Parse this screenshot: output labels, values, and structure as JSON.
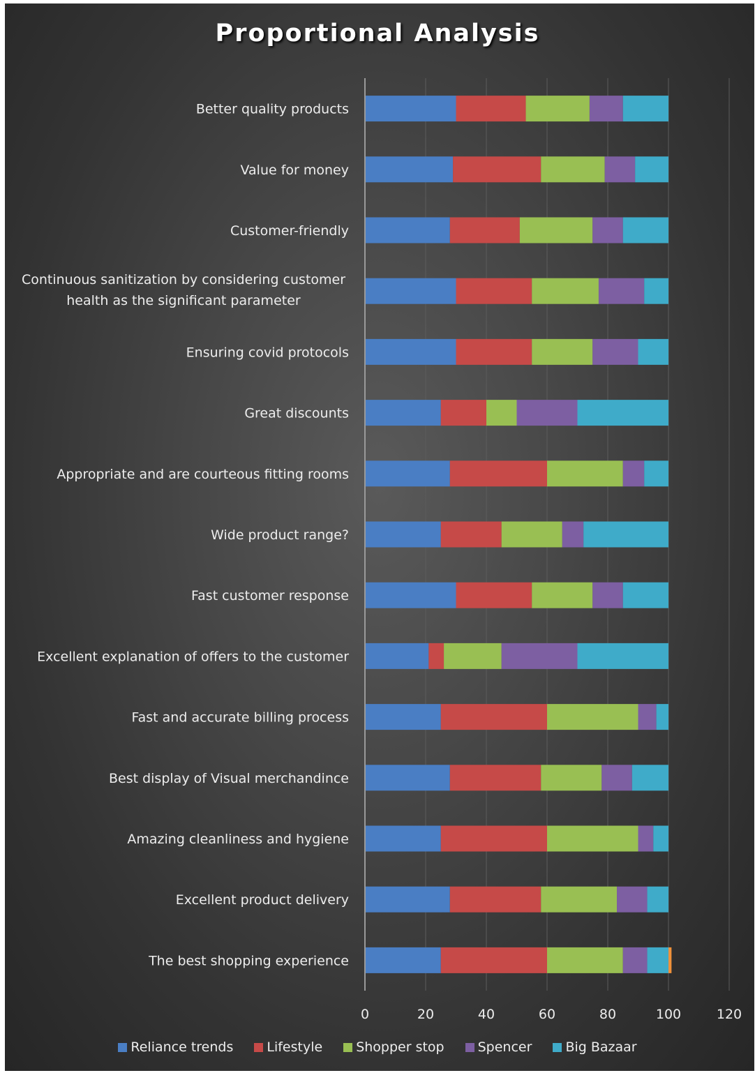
{
  "chart_data": {
    "type": "bar",
    "orientation": "horizontal",
    "stacked": true,
    "title": "Proportional Analysis",
    "xlabel": "",
    "ylabel": "",
    "xlim": [
      0,
      120
    ],
    "x_ticks": [
      0,
      20,
      40,
      60,
      80,
      100,
      120
    ],
    "grid": true,
    "legend_position": "bottom",
    "categories": [
      "Better quality products",
      "Value for money",
      "Customer-friendly",
      [
        "Continuous sanitization by considering customer",
        "health as the significant parameter"
      ],
      "Ensuring covid protocols",
      "Great discounts",
      "Appropriate and are courteous fitting rooms",
      "Wide product range?",
      "Fast customer response",
      "Excellent explanation of  offers  to the customer",
      "Fast and accurate  billing process",
      "Best  display of Visual merchandince",
      "Amazing cleanliness and hygiene",
      "Excellent product delivery",
      "The best shopping experience"
    ],
    "series": [
      {
        "name": "Reliance trends",
        "color": "#4a7ec4",
        "values": [
          30,
          29,
          28,
          30,
          30,
          25,
          28,
          25,
          30,
          21,
          25,
          28,
          25,
          28,
          25
        ]
      },
      {
        "name": "Lifestyle",
        "color": "#c64a48",
        "values": [
          23,
          29,
          23,
          25,
          25,
          15,
          32,
          20,
          25,
          5,
          35,
          30,
          35,
          30,
          35
        ]
      },
      {
        "name": "Shopper stop",
        "color": "#99bf53",
        "values": [
          21,
          21,
          24,
          22,
          20,
          10,
          25,
          20,
          20,
          19,
          30,
          20,
          30,
          25,
          25
        ]
      },
      {
        "name": "Spencer",
        "color": "#7d5fa2",
        "values": [
          11,
          10,
          10,
          15,
          15,
          20,
          7,
          7,
          10,
          25,
          6,
          10,
          5,
          10,
          8
        ]
      },
      {
        "name": "Big Bazaar",
        "color": "#3fabc9",
        "values": [
          15,
          11,
          15,
          8,
          10,
          30,
          8,
          28,
          15,
          30,
          4,
          12,
          5,
          7,
          7
        ]
      },
      {
        "color": "#f0913a",
        "values": [
          0,
          0,
          0,
          0,
          0,
          0,
          0,
          0,
          0,
          0,
          0,
          0,
          0,
          0,
          1
        ]
      }
    ]
  }
}
